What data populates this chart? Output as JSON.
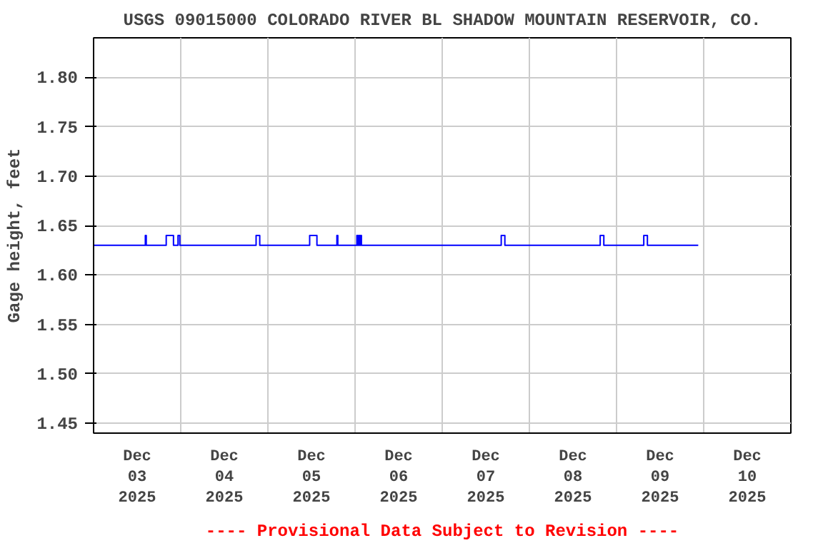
{
  "chart_data": {
    "type": "step",
    "title": "USGS 09015000 COLORADO RIVER BL SHADOW MOUNTAIN RESERVOIR, CO.",
    "ylabel": "Gage height, feet",
    "annotations": [
      "---- Provisional Data Subject to Revision ----"
    ],
    "series": [
      {
        "color": "#0000ff",
        "x": [
          "2025-12-03T00:00",
          "2025-12-03T14:00",
          "2025-12-03T14:15",
          "2025-12-03T14:30",
          "2025-12-03T20:00",
          "2025-12-03T22:00",
          "2025-12-03T23:15",
          "2025-12-03T23:45",
          "2025-12-04T20:45",
          "2025-12-04T21:45",
          "2025-12-05T11:30",
          "2025-12-05T13:30",
          "2025-12-05T19:00",
          "2025-12-05T19:15",
          "2025-12-06T00:30",
          "2025-12-06T00:45",
          "2025-12-06T01:00",
          "2025-12-06T01:15",
          "2025-12-06T01:30",
          "2025-12-06T01:45",
          "2025-12-07T16:15",
          "2025-12-07T17:15",
          "2025-12-08T19:30",
          "2025-12-08T20:30",
          "2025-12-09T07:30",
          "2025-12-09T08:30",
          "2025-12-09T22:30"
        ],
        "values": [
          1.63,
          1.63,
          1.64,
          1.63,
          1.64,
          1.63,
          1.64,
          1.63,
          1.64,
          1.63,
          1.64,
          1.63,
          1.64,
          1.63,
          1.64,
          1.63,
          1.64,
          1.63,
          1.64,
          1.63,
          1.64,
          1.63,
          1.64,
          1.63,
          1.64,
          1.63,
          1.63
        ]
      }
    ],
    "xlim": [
      "2025-12-03T00:00",
      "2025-12-11T00:00"
    ],
    "xticks": [
      {
        "value": "2025-12-03T00:00",
        "label": null
      },
      {
        "value": "2025-12-03T12:00",
        "label": "Dec\n03\n2025"
      },
      {
        "value": "2025-12-04T00:00",
        "label": null
      },
      {
        "value": "2025-12-04T12:00",
        "label": "Dec\n04\n2025"
      },
      {
        "value": "2025-12-05T00:00",
        "label": null
      },
      {
        "value": "2025-12-05T12:00",
        "label": "Dec\n05\n2025"
      },
      {
        "value": "2025-12-06T00:00",
        "label": null
      },
      {
        "value": "2025-12-06T12:00",
        "label": "Dec\n06\n2025"
      },
      {
        "value": "2025-12-07T00:00",
        "label": null
      },
      {
        "value": "2025-12-07T12:00",
        "label": "Dec\n07\n2025"
      },
      {
        "value": "2025-12-08T00:00",
        "label": null
      },
      {
        "value": "2025-12-08T12:00",
        "label": "Dec\n08\n2025"
      },
      {
        "value": "2025-12-09T00:00",
        "label": null
      },
      {
        "value": "2025-12-09T12:00",
        "label": "Dec\n09\n2025"
      },
      {
        "value": "2025-12-10T00:00",
        "label": null
      },
      {
        "value": "2025-12-10T12:00",
        "label": "Dec\n10\n2025"
      },
      {
        "value": "2025-12-11T00:00",
        "label": null
      }
    ],
    "ylim": [
      1.44,
      1.84
    ],
    "yticks": [
      {
        "value": 1.45,
        "label": "1.45"
      },
      {
        "value": 1.5,
        "label": "1.50"
      },
      {
        "value": 1.55,
        "label": "1.55"
      },
      {
        "value": 1.6,
        "label": "1.60"
      },
      {
        "value": 1.65,
        "label": "1.65"
      },
      {
        "value": 1.7,
        "label": "1.70"
      },
      {
        "value": 1.75,
        "label": "1.75"
      },
      {
        "value": 1.8,
        "label": "1.80"
      }
    ],
    "grid": true,
    "line_style": "solid"
  }
}
